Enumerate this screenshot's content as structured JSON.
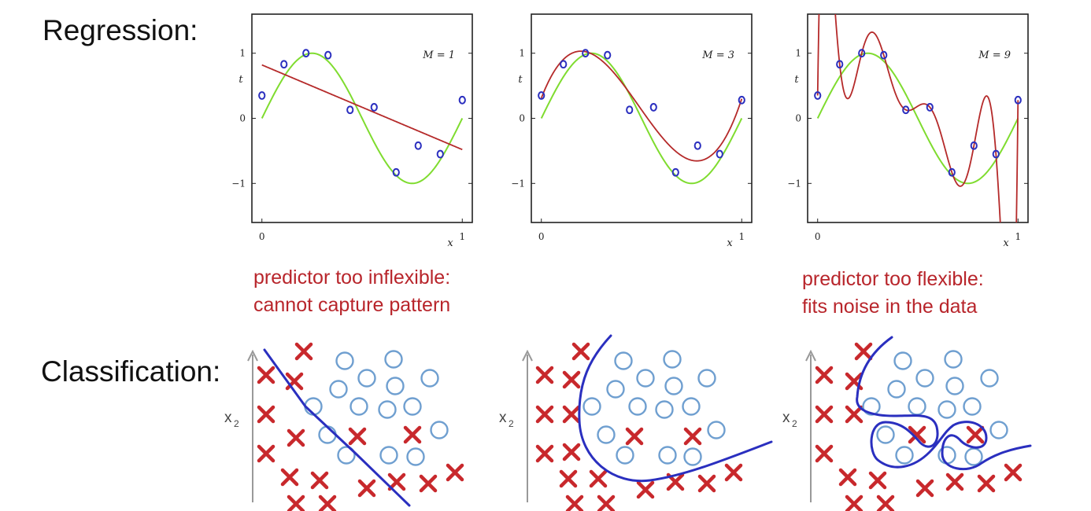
{
  "headings": {
    "regression": "Regression:",
    "classification": "Classification:"
  },
  "notes": {
    "left_line1": "predictor too inflexible:",
    "left_line2": "cannot capture pattern",
    "right_line1": "predictor too flexible:",
    "right_line2": "fits noise in the data"
  },
  "colors": {
    "true_curve": "#7fdc2f",
    "fit_curve": "#b52a2a",
    "points": "#2b2fbf",
    "cls_circle": "#6f9fd0",
    "cls_cross": "#c8282c",
    "cls_boundary": "#2a2fbf",
    "note_text": "#b8252b"
  },
  "chart_data": [
    {
      "type": "line",
      "annotation": "M = 1",
      "xlabel": "x",
      "ylabel": "t",
      "x_ticks": [
        "0",
        "1"
      ],
      "y_ticks": [
        "1",
        "0",
        "−1"
      ],
      "xlim": [
        -0.05,
        1.05
      ],
      "ylim": [
        -1.6,
        1.6
      ],
      "points": {
        "x": [
          0.0,
          0.11,
          0.22,
          0.33,
          0.44,
          0.56,
          0.67,
          0.78,
          0.89,
          1.0
        ],
        "y": [
          0.35,
          0.83,
          1.0,
          0.97,
          0.13,
          0.17,
          -0.83,
          -0.42,
          -0.55,
          0.28
        ]
      },
      "series": [
        {
          "kind": "true",
          "equation": "sin(2*pi*x)"
        },
        {
          "kind": "fit",
          "coefficients": [
            0.82,
            -1.3
          ]
        }
      ]
    },
    {
      "type": "line",
      "annotation": "M = 3",
      "xlabel": "x",
      "ylabel": "t",
      "x_ticks": [
        "0",
        "1"
      ],
      "y_ticks": [
        "1",
        "0",
        "−1"
      ],
      "xlim": [
        -0.05,
        1.05
      ],
      "ylim": [
        -1.6,
        1.6
      ],
      "points": {
        "x": [
          0.0,
          0.11,
          0.22,
          0.33,
          0.44,
          0.56,
          0.67,
          0.78,
          0.89,
          1.0
        ],
        "y": [
          0.35,
          0.83,
          1.0,
          0.97,
          0.13,
          0.17,
          -0.83,
          -0.42,
          -0.55,
          0.28
        ]
      },
      "series": [
        {
          "kind": "true",
          "equation": "sin(2*pi*x)"
        },
        {
          "kind": "fit",
          "coefficients": [
            0.31,
            7.99,
            -25.4,
            17.4
          ]
        }
      ]
    },
    {
      "type": "line",
      "annotation": "M = 9",
      "xlabel": "x",
      "ylabel": "t",
      "x_ticks": [
        "0",
        "1"
      ],
      "y_ticks": [
        "1",
        "0",
        "−1"
      ],
      "xlim": [
        -0.05,
        1.05
      ],
      "ylim": [
        -1.6,
        1.6
      ],
      "points": {
        "x": [
          0.0,
          0.11,
          0.22,
          0.33,
          0.44,
          0.56,
          0.67,
          0.78,
          0.89,
          1.0
        ],
        "y": [
          0.35,
          0.83,
          1.0,
          0.97,
          0.13,
          0.17,
          -0.83,
          -0.42,
          -0.55,
          0.28
        ]
      },
      "series": [
        {
          "kind": "true",
          "equation": "sin(2*pi*x)"
        },
        {
          "kind": "fit",
          "interpolates_points": true
        }
      ]
    }
  ],
  "classification": {
    "axis_label": "x",
    "axis_subscript": "2",
    "panels": [
      {
        "boundary": "linear"
      },
      {
        "boundary": "smooth-curve"
      },
      {
        "boundary": "overfit-curve"
      }
    ]
  }
}
